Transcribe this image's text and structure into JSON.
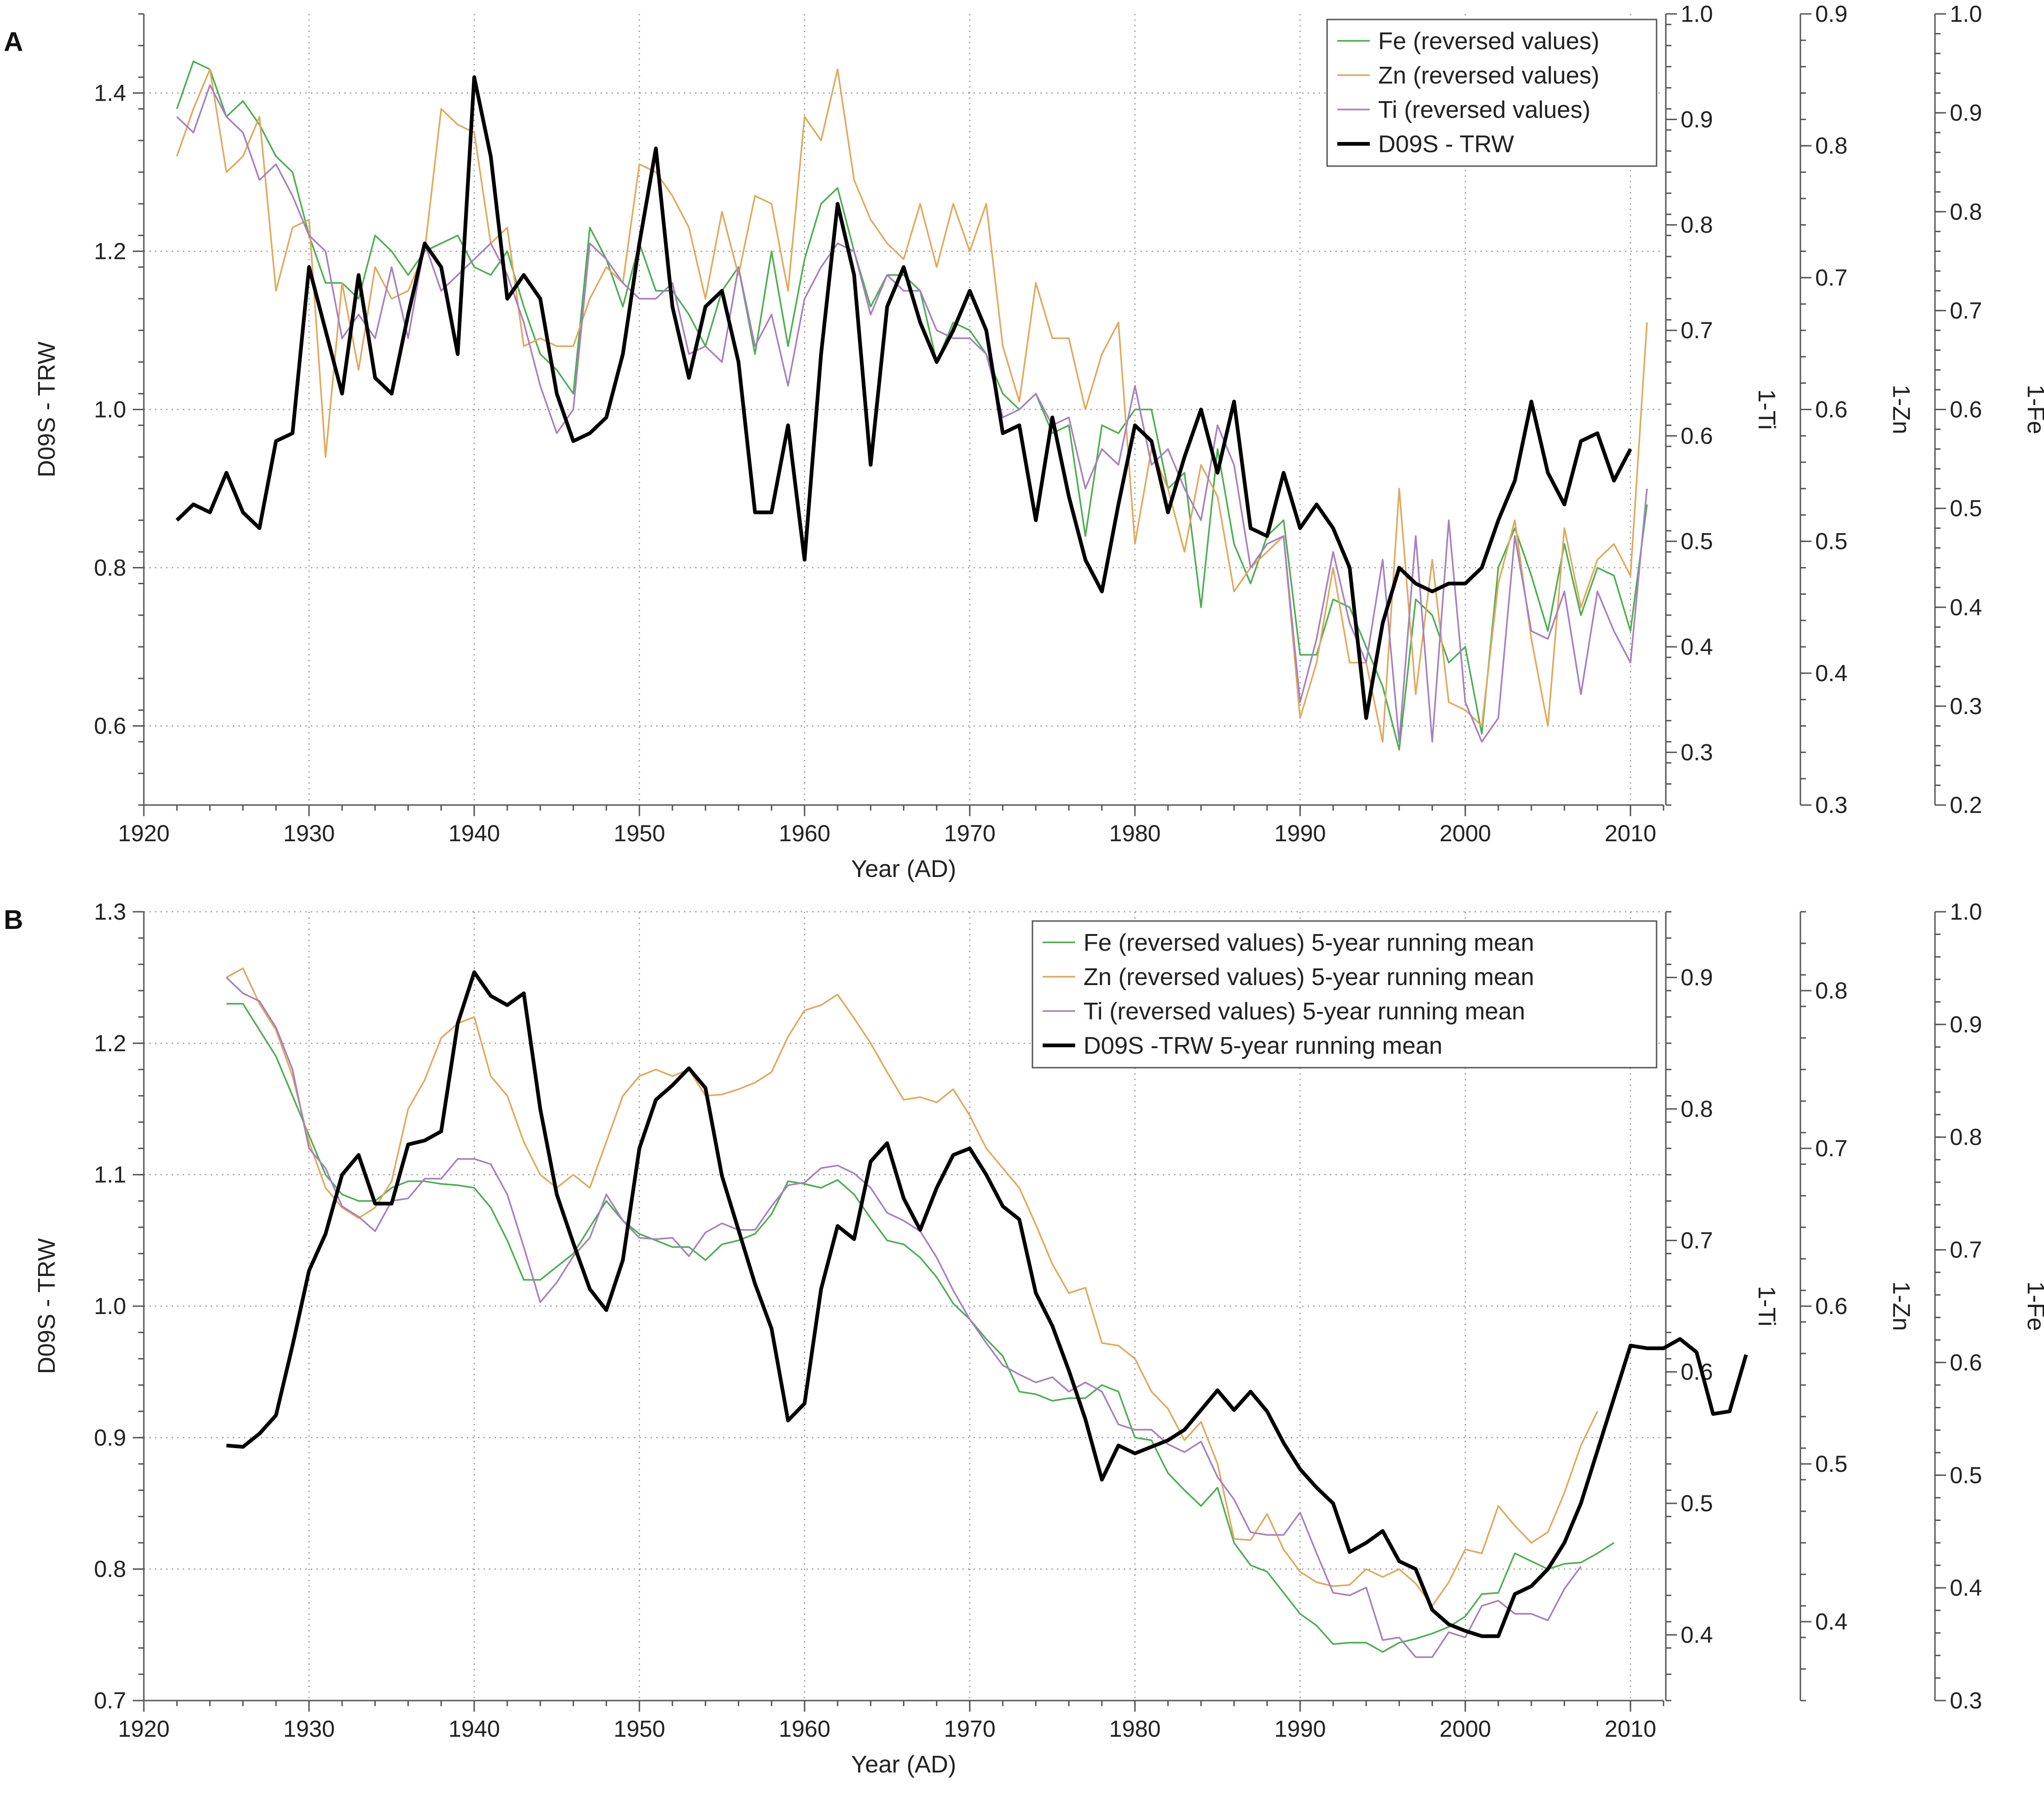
{
  "colors": {
    "fe": "#4caf50",
    "zn": "#e0a95c",
    "ti": "#a77fc0",
    "trw": "#000000"
  },
  "chart_data": [
    {
      "type": "line",
      "panel_label": "A",
      "xlabel": "Year (AD)",
      "ylabel": "D09S - TRW",
      "xlim": [
        1920,
        2012
      ],
      "xticks": [
        1920,
        1930,
        1940,
        1950,
        1960,
        1970,
        1980,
        1990,
        2000,
        2010
      ],
      "ylim": [
        0.5,
        1.5
      ],
      "yticks": [
        0.6,
        0.8,
        1.0,
        1.2,
        1.4
      ],
      "ytick_labels": [
        "0.6",
        "0.8",
        "1.0",
        "1.2",
        "1.4"
      ],
      "right_axes": [
        {
          "label": "1-Ti",
          "lim": [
            0.25,
            1.0
          ],
          "ticks": [
            0.3,
            0.4,
            0.5,
            0.6,
            0.7,
            0.8,
            0.9,
            1.0
          ],
          "tick_labels": [
            "0.3",
            "0.4",
            "0.5",
            "0.6",
            "0.7",
            "0.8",
            "0.9",
            "1.0"
          ]
        },
        {
          "label": "1-Zn",
          "lim": [
            0.3,
            0.9
          ],
          "ticks": [
            0.3,
            0.4,
            0.5,
            0.6,
            0.7,
            0.8,
            0.9
          ],
          "tick_labels": [
            "0.3",
            "0.4",
            "0.5",
            "0.6",
            "0.7",
            "0.8",
            "0.9"
          ]
        },
        {
          "label": "1-Fe",
          "lim": [
            0.2,
            1.0
          ],
          "ticks": [
            0.2,
            0.3,
            0.4,
            0.5,
            0.6,
            0.7,
            0.8,
            0.9,
            1.0
          ],
          "tick_labels": [
            "0.2",
            "0.3",
            "0.4",
            "0.5",
            "0.6",
            "0.7",
            "0.8",
            "0.9",
            "1.0"
          ]
        }
      ],
      "legend": [
        "Fe (reversed values)",
        "Zn (reversed values)",
        "Ti (reversed values)",
        "D09S - TRW"
      ],
      "series": [
        {
          "name": "Fe (reversed values)",
          "color_key": "fe",
          "x_start": 1922,
          "values": [
            1.38,
            1.44,
            1.43,
            1.37,
            1.39,
            1.36,
            1.32,
            1.3,
            1.22,
            1.16,
            1.16,
            1.14,
            1.22,
            1.2,
            1.17,
            1.2,
            1.21,
            1.22,
            1.18,
            1.17,
            1.2,
            1.13,
            1.07,
            1.05,
            1.02,
            1.23,
            1.19,
            1.13,
            1.21,
            1.15,
            1.15,
            1.12,
            1.08,
            1.15,
            1.18,
            1.07,
            1.2,
            1.08,
            1.19,
            1.26,
            1.28,
            1.2,
            1.13,
            1.17,
            1.17,
            1.15,
            1.06,
            1.11,
            1.1,
            1.07,
            1.02,
            1.0,
            1.02,
            0.97,
            0.98,
            0.84,
            0.98,
            0.97,
            1.0,
            1.0,
            0.9,
            0.92,
            0.75,
            0.95,
            0.83,
            0.78,
            0.84,
            0.86,
            0.69,
            0.69,
            0.76,
            0.75,
            0.7,
            0.65,
            0.57,
            0.76,
            0.74,
            0.68,
            0.7,
            0.59,
            0.8,
            0.85,
            0.79,
            0.72,
            0.83,
            0.74,
            0.8,
            0.79,
            0.72,
            0.88
          ]
        },
        {
          "name": "Zn (reversed values)",
          "color_key": "zn",
          "x_start": 1922,
          "values": [
            1.32,
            1.38,
            1.43,
            1.3,
            1.32,
            1.37,
            1.15,
            1.23,
            1.24,
            0.94,
            1.16,
            1.05,
            1.18,
            1.14,
            1.15,
            1.2,
            1.38,
            1.36,
            1.35,
            1.21,
            1.23,
            1.08,
            1.09,
            1.08,
            1.08,
            1.14,
            1.18,
            1.16,
            1.31,
            1.3,
            1.27,
            1.23,
            1.14,
            1.25,
            1.17,
            1.27,
            1.26,
            1.15,
            1.37,
            1.34,
            1.43,
            1.29,
            1.24,
            1.21,
            1.19,
            1.26,
            1.18,
            1.26,
            1.2,
            1.26,
            1.08,
            1.01,
            1.16,
            1.09,
            1.09,
            1.0,
            1.07,
            1.11,
            0.83,
            0.95,
            0.9,
            0.82,
            0.93,
            0.89,
            0.77,
            0.8,
            0.82,
            0.84,
            0.61,
            0.68,
            0.8,
            0.68,
            0.68,
            0.58,
            0.9,
            0.64,
            0.81,
            0.63,
            0.62,
            0.6,
            0.78,
            0.86,
            0.71,
            0.6,
            0.85,
            0.75,
            0.81,
            0.83,
            0.79,
            1.11
          ]
        },
        {
          "name": "Ti (reversed values)",
          "color_key": "ti",
          "x_start": 1922,
          "values": [
            1.37,
            1.35,
            1.41,
            1.37,
            1.35,
            1.29,
            1.31,
            1.27,
            1.22,
            1.2,
            1.09,
            1.12,
            1.09,
            1.18,
            1.09,
            1.21,
            1.15,
            1.17,
            1.19,
            1.21,
            1.17,
            1.11,
            1.03,
            0.97,
            1.0,
            1.21,
            1.19,
            1.16,
            1.14,
            1.14,
            1.16,
            1.07,
            1.08,
            1.06,
            1.18,
            1.08,
            1.12,
            1.03,
            1.14,
            1.18,
            1.21,
            1.2,
            1.12,
            1.17,
            1.15,
            1.15,
            1.1,
            1.09,
            1.09,
            1.07,
            0.99,
            1.0,
            1.02,
            0.98,
            0.99,
            0.9,
            0.95,
            0.93,
            1.03,
            0.93,
            0.95,
            0.9,
            0.86,
            0.98,
            0.93,
            0.8,
            0.83,
            0.84,
            0.63,
            0.71,
            0.82,
            0.73,
            0.68,
            0.81,
            0.58,
            0.84,
            0.58,
            0.86,
            0.63,
            0.58,
            0.61,
            0.84,
            0.72,
            0.71,
            0.77,
            0.64,
            0.77,
            0.72,
            0.68,
            0.9
          ]
        },
        {
          "name": "D09S - TRW",
          "color_key": "trw",
          "x_start": 1922,
          "bold": true,
          "values": [
            0.86,
            0.88,
            0.87,
            0.92,
            0.87,
            0.85,
            0.96,
            0.97,
            1.18,
            1.1,
            1.02,
            1.17,
            1.04,
            1.02,
            1.12,
            1.21,
            1.18,
            1.07,
            1.42,
            1.32,
            1.14,
            1.17,
            1.14,
            1.02,
            0.96,
            0.97,
            0.99,
            1.07,
            1.21,
            1.33,
            1.13,
            1.04,
            1.13,
            1.15,
            1.06,
            0.87,
            0.87,
            0.98,
            0.81,
            1.07,
            1.26,
            1.17,
            0.93,
            1.13,
            1.18,
            1.11,
            1.06,
            1.1,
            1.15,
            1.1,
            0.97,
            0.98,
            0.86,
            0.99,
            0.89,
            0.81,
            0.77,
            0.88,
            0.98,
            0.96,
            0.87,
            0.94,
            1.0,
            0.92,
            1.01,
            0.85,
            0.84,
            0.92,
            0.85,
            0.88,
            0.85,
            0.8,
            0.61,
            0.73,
            0.8,
            0.78,
            0.77,
            0.78,
            0.78,
            0.8,
            0.86,
            0.91,
            1.01,
            0.92,
            0.88,
            0.96,
            0.97,
            0.91,
            0.95
          ]
        }
      ]
    },
    {
      "type": "line",
      "panel_label": "B",
      "xlabel": "Year (AD)",
      "ylabel": "D09S - TRW",
      "xlim": [
        1920,
        2012
      ],
      "xticks": [
        1920,
        1930,
        1940,
        1950,
        1960,
        1970,
        1980,
        1990,
        2000,
        2010
      ],
      "ylim": [
        0.7,
        1.3
      ],
      "yticks": [
        0.7,
        0.8,
        0.9,
        1.0,
        1.1,
        1.2,
        1.3
      ],
      "ytick_labels": [
        "0.7",
        "0.8",
        "0.9",
        "1.0",
        "1.1",
        "1.2",
        "1.3"
      ],
      "right_axes": [
        {
          "label": "1-Ti",
          "lim": [
            0.35,
            0.95
          ],
          "ticks": [
            0.4,
            0.5,
            0.6,
            0.7,
            0.8,
            0.9
          ],
          "tick_labels": [
            "0.4",
            "0.5",
            "0.6",
            "0.7",
            "0.8",
            "0.9"
          ]
        },
        {
          "label": "1-Zn",
          "lim": [
            0.35,
            0.85
          ],
          "ticks": [
            0.4,
            0.5,
            0.6,
            0.7,
            0.8
          ],
          "tick_labels": [
            "0.4",
            "0.5",
            "0.6",
            "0.7",
            "0.8"
          ]
        },
        {
          "label": "1-Fe",
          "lim": [
            0.3,
            1.0
          ],
          "ticks": [
            0.3,
            0.4,
            0.5,
            0.6,
            0.7,
            0.8,
            0.9,
            1.0
          ],
          "tick_labels": [
            "0.3",
            "0.4",
            "0.5",
            "0.6",
            "0.7",
            "0.8",
            "0.9",
            "1.0"
          ]
        }
      ],
      "legend": [
        "Fe (reversed values) 5-year running mean",
        "Zn (reversed values) 5-year running mean",
        "Ti (reversed values) 5-year running mean",
        "D09S -TRW 5-year running mean"
      ],
      "series": [
        {
          "name": "Fe (reversed values) 5-year running mean",
          "color_key": "fe",
          "x_start": 1925,
          "values": [
            1.23,
            1.23,
            1.21,
            1.19,
            1.16,
            1.13,
            1.1,
            1.085,
            1.08,
            1.08,
            1.09,
            1.095,
            1.095,
            1.093,
            1.092,
            1.09,
            1.075,
            1.05,
            1.02,
            1.02,
            1.03,
            1.04,
            1.06,
            1.08,
            1.065,
            1.055,
            1.05,
            1.045,
            1.045,
            1.035,
            1.047,
            1.05,
            1.055,
            1.07,
            1.095,
            1.093,
            1.09,
            1.096,
            1.085,
            1.067,
            1.05,
            1.047,
            1.037,
            1.022,
            1.002,
            0.99,
            0.975,
            0.962,
            0.935,
            0.933,
            0.928,
            0.93,
            0.93,
            0.94,
            0.935,
            0.9,
            0.898,
            0.873,
            0.86,
            0.848,
            0.862,
            0.82,
            0.803,
            0.798,
            0.782,
            0.766,
            0.757,
            0.743,
            0.744,
            0.744,
            0.737,
            0.744,
            0.747,
            0.751,
            0.756,
            0.764,
            0.781,
            0.782,
            0.812,
            0.806,
            0.8,
            0.804,
            0.805,
            0.812,
            0.82
          ]
        },
        {
          "name": "Zn (reversed values) 5-year running mean",
          "color_key": "zn",
          "x_start": 1925,
          "values": [
            1.25,
            1.257,
            1.23,
            1.21,
            1.175,
            1.125,
            1.09,
            1.075,
            1.067,
            1.075,
            1.095,
            1.15,
            1.172,
            1.204,
            1.215,
            1.22,
            1.175,
            1.16,
            1.125,
            1.1,
            1.09,
            1.1,
            1.09,
            1.125,
            1.16,
            1.175,
            1.18,
            1.175,
            1.18,
            1.16,
            1.161,
            1.165,
            1.17,
            1.178,
            1.205,
            1.225,
            1.229,
            1.237,
            1.219,
            1.2,
            1.178,
            1.157,
            1.159,
            1.155,
            1.165,
            1.145,
            1.12,
            1.105,
            1.09,
            1.062,
            1.032,
            1.01,
            1.014,
            0.972,
            0.97,
            0.96,
            0.935,
            0.922,
            0.898,
            0.912,
            0.88,
            0.823,
            0.822,
            0.842,
            0.815,
            0.798,
            0.79,
            0.787,
            0.788,
            0.8,
            0.794,
            0.8,
            0.789,
            0.772,
            0.79,
            0.815,
            0.812,
            0.848,
            0.833,
            0.82,
            0.828,
            0.858,
            0.894,
            0.92
          ]
        },
        {
          "name": "Ti (reversed values) 5-year running mean",
          "color_key": "ti",
          "x_start": 1925,
          "values": [
            1.25,
            1.238,
            1.232,
            1.212,
            1.18,
            1.12,
            1.105,
            1.076,
            1.068,
            1.057,
            1.08,
            1.082,
            1.097,
            1.097,
            1.112,
            1.112,
            1.108,
            1.085,
            1.045,
            1.003,
            1.018,
            1.038,
            1.052,
            1.085,
            1.065,
            1.052,
            1.051,
            1.052,
            1.038,
            1.056,
            1.063,
            1.058,
            1.058,
            1.076,
            1.092,
            1.094,
            1.105,
            1.107,
            1.101,
            1.09,
            1.071,
            1.065,
            1.057,
            1.037,
            1.012,
            0.99,
            0.972,
            0.955,
            0.948,
            0.942,
            0.946,
            0.935,
            0.942,
            0.935,
            0.91,
            0.906,
            0.906,
            0.895,
            0.889,
            0.897,
            0.87,
            0.853,
            0.828,
            0.826,
            0.826,
            0.843,
            0.812,
            0.782,
            0.78,
            0.786,
            0.746,
            0.748,
            0.733,
            0.733,
            0.752,
            0.748,
            0.772,
            0.776,
            0.766,
            0.766,
            0.761,
            0.785,
            0.802
          ]
        },
        {
          "name": "D09S -TRW 5-year running mean",
          "color_key": "trw",
          "x_start": 1925,
          "bold": true,
          "values": [
            0.894,
            0.893,
            0.903,
            0.917,
            0.97,
            1.027,
            1.055,
            1.1,
            1.115,
            1.078,
            1.078,
            1.123,
            1.126,
            1.133,
            1.215,
            1.254,
            1.236,
            1.229,
            1.238,
            1.15,
            1.085,
            1.048,
            1.013,
            0.997,
            1.035,
            1.12,
            1.157,
            1.168,
            1.181,
            1.166,
            1.099,
            1.058,
            1.017,
            0.983,
            0.913,
            0.926,
            1.013,
            1.061,
            1.051,
            1.11,
            1.124,
            1.082,
            1.058,
            1.09,
            1.115,
            1.12,
            1.1,
            1.076,
            1.066,
            1.01,
            0.985,
            0.951,
            0.914,
            0.868,
            0.894,
            0.888,
            0.893,
            0.898,
            0.906,
            0.921,
            0.936,
            0.921,
            0.935,
            0.92,
            0.896,
            0.876,
            0.862,
            0.85,
            0.813,
            0.82,
            0.829,
            0.806,
            0.8,
            0.769,
            0.758,
            0.753,
            0.749,
            0.749,
            0.781,
            0.787,
            0.8,
            0.82,
            0.85,
            0.89,
            0.93,
            0.97,
            0.968,
            0.968,
            0.975,
            0.965,
            0.918,
            0.92,
            0.963
          ]
        }
      ]
    }
  ]
}
